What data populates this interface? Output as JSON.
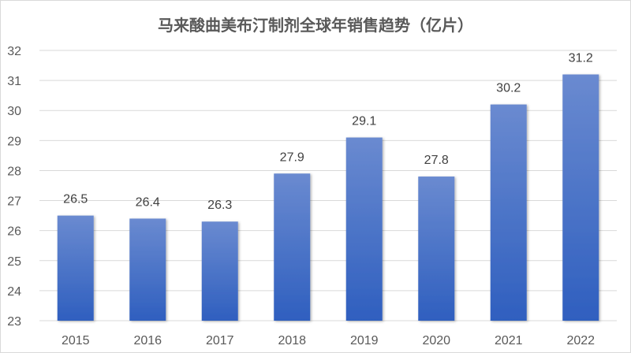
{
  "chart_data": {
    "type": "bar",
    "title": "马来酸曲美布汀制剂全球年销售趋势（亿片）",
    "categories": [
      "2015",
      "2016",
      "2017",
      "2018",
      "2019",
      "2020",
      "2021",
      "2022"
    ],
    "values": [
      26.5,
      26.4,
      26.3,
      27.9,
      29.1,
      27.8,
      30.2,
      31.2
    ],
    "ylim": [
      23,
      32
    ],
    "yticks": [
      23,
      24,
      25,
      26,
      27,
      28,
      29,
      30,
      31,
      32
    ],
    "grid": true,
    "data_labels": true,
    "colors": {
      "bar_top": "#6a8ad0",
      "bar_bottom": "#2f5fbf",
      "grid": "#d9d9d9"
    }
  }
}
